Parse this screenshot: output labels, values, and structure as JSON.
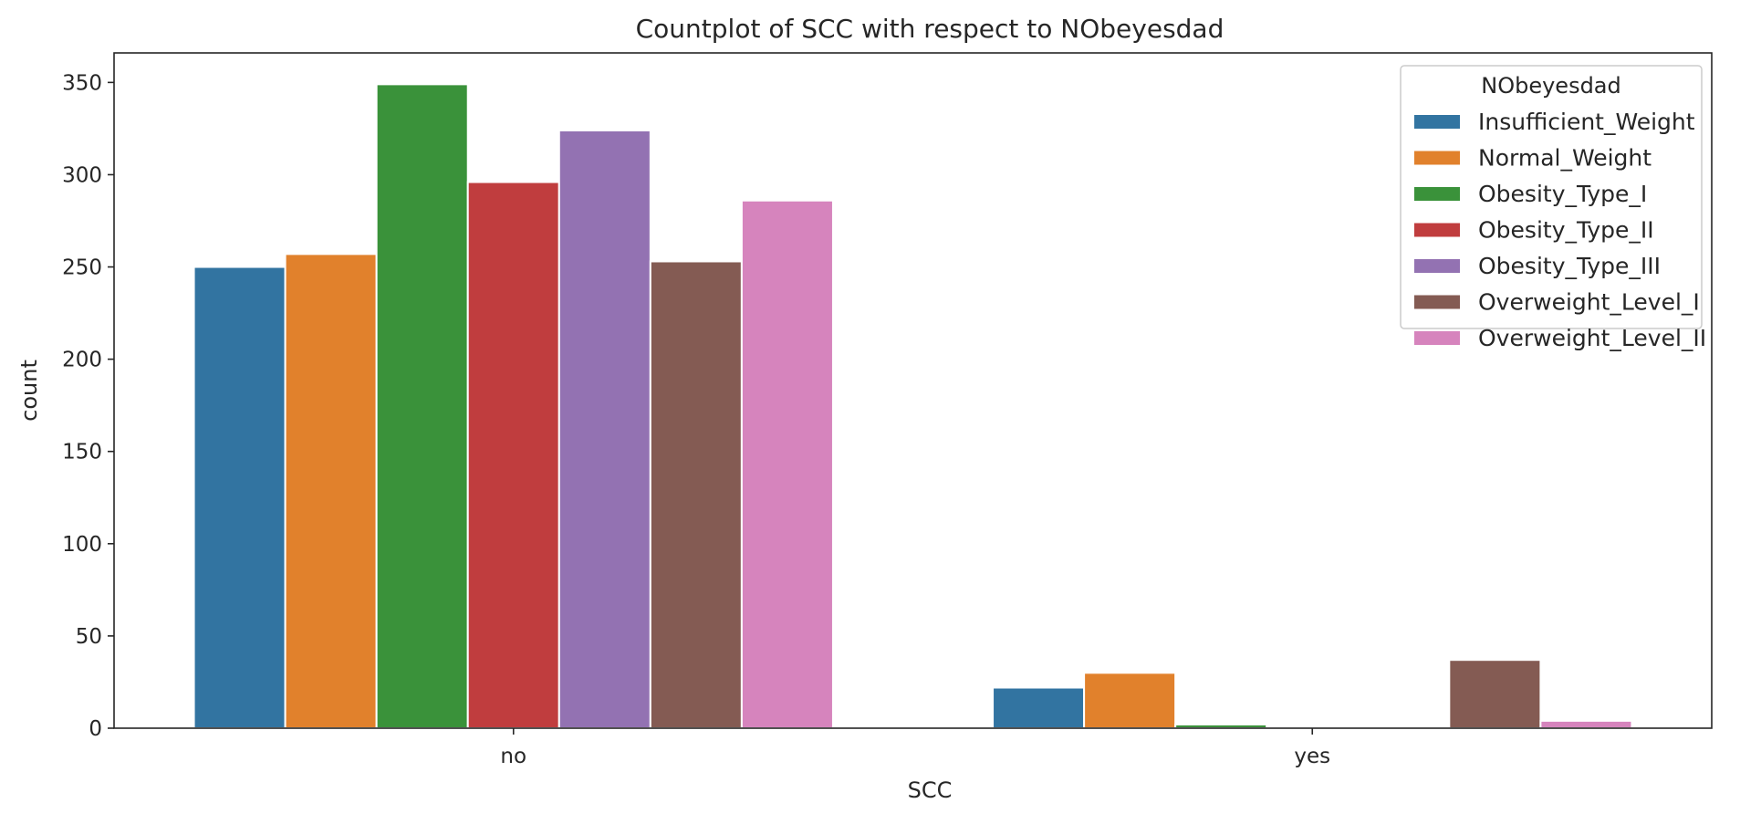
{
  "chart_data": {
    "type": "bar",
    "title": "Countplot of SCC with respect to NObeyesdad",
    "xlabel": "SCC",
    "ylabel": "count",
    "categories": [
      "no",
      "yes"
    ],
    "ylim": [
      0,
      366
    ],
    "yticks": [
      0,
      50,
      100,
      150,
      200,
      250,
      300,
      350
    ],
    "grid": false,
    "legend": {
      "title": "NObeyesdad",
      "placement": "top-right"
    },
    "series": [
      {
        "name": "Insufficient_Weight",
        "color": "#3274a1",
        "values": [
          250,
          22
        ]
      },
      {
        "name": "Normal_Weight",
        "color": "#e1812c",
        "values": [
          257,
          30
        ]
      },
      {
        "name": "Obesity_Type_I",
        "color": "#3a923a",
        "values": [
          349,
          2
        ]
      },
      {
        "name": "Obesity_Type_II",
        "color": "#c03d3e",
        "values": [
          296,
          0
        ]
      },
      {
        "name": "Obesity_Type_III",
        "color": "#9372b2",
        "values": [
          324,
          0
        ]
      },
      {
        "name": "Overweight_Level_I",
        "color": "#845b53",
        "values": [
          253,
          37
        ]
      },
      {
        "name": "Overweight_Level_II",
        "color": "#d684bd",
        "values": [
          286,
          4
        ]
      }
    ]
  }
}
